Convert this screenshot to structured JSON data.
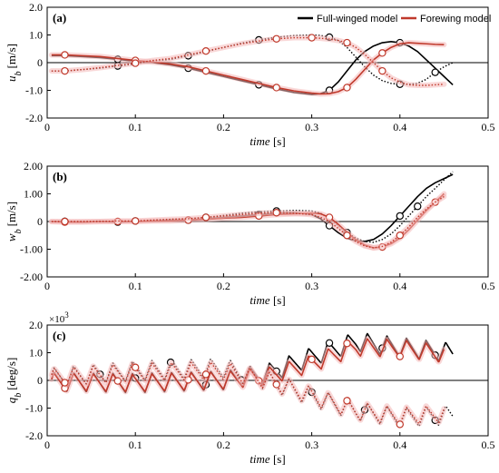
{
  "legend": {
    "position": "top-right",
    "entries": [
      {
        "label": "Full-winged model",
        "color": "#000000"
      },
      {
        "label": "Forewing model",
        "color": "#c0392b"
      }
    ]
  },
  "colors": {
    "full": "#000000",
    "fore": "#c0392b",
    "highlight": "#f4b8b8"
  },
  "chart_data": [
    {
      "type": "line",
      "panel_label": "(a)",
      "ylabel_var": "u",
      "ylabel_sub": "b",
      "ylabel_unit": "[m/s]",
      "xlabel_var": "time",
      "xlabel_unit": "[s]",
      "xlim": [
        0,
        0.5
      ],
      "ylim": [
        -2.0,
        2.0
      ],
      "xticks": [
        0,
        0.1,
        0.2,
        0.3,
        0.4,
        0.5
      ],
      "xtick_labels": [
        "0",
        "0.1",
        "0.2",
        "0.3",
        "0.4",
        "0.5"
      ],
      "yticks": [
        -2.0,
        -1.0,
        0,
        1.0,
        2.0
      ],
      "ytick_labels": [
        "-2.0",
        "-1.0",
        "0",
        "1.0",
        "2.0"
      ],
      "series": [
        {
          "name": "Full-winged model",
          "model": "full",
          "style": "solid",
          "x": [
            0.005,
            0.02,
            0.04,
            0.06,
            0.08,
            0.1,
            0.12,
            0.14,
            0.16,
            0.18,
            0.2,
            0.22,
            0.24,
            0.26,
            0.28,
            0.3,
            0.31,
            0.32,
            0.33,
            0.34,
            0.35,
            0.36,
            0.37,
            0.38,
            0.39,
            0.4,
            0.41,
            0.42,
            0.43,
            0.44,
            0.45,
            0.46
          ],
          "y": [
            0.25,
            0.25,
            0.22,
            0.18,
            0.12,
            0.05,
            0.0,
            -0.08,
            -0.2,
            -0.35,
            -0.5,
            -0.65,
            -0.8,
            -0.95,
            -1.08,
            -1.15,
            -1.12,
            -1.0,
            -0.7,
            -0.3,
            0.1,
            0.4,
            0.6,
            0.72,
            0.76,
            0.72,
            0.6,
            0.4,
            0.1,
            -0.2,
            -0.5,
            -0.8
          ],
          "markers": [
            0.08,
            0.16,
            0.24,
            0.32,
            0.4
          ]
        },
        {
          "name": "Full-winged model",
          "model": "full",
          "style": "dotted",
          "x": [
            0.005,
            0.02,
            0.04,
            0.06,
            0.08,
            0.1,
            0.12,
            0.14,
            0.16,
            0.18,
            0.2,
            0.22,
            0.24,
            0.26,
            0.28,
            0.3,
            0.31,
            0.32,
            0.33,
            0.34,
            0.35,
            0.36,
            0.37,
            0.38,
            0.39,
            0.4,
            0.41,
            0.42,
            0.43,
            0.44,
            0.45,
            0.46
          ],
          "y": [
            -0.3,
            -0.3,
            -0.25,
            -0.2,
            -0.12,
            -0.05,
            0.05,
            0.12,
            0.25,
            0.4,
            0.55,
            0.7,
            0.82,
            0.92,
            0.98,
            1.0,
            0.98,
            0.92,
            0.8,
            0.55,
            0.2,
            -0.15,
            -0.45,
            -0.65,
            -0.75,
            -0.78,
            -0.78,
            -0.75,
            -0.6,
            -0.35,
            -0.15,
            0.0
          ],
          "markers": [
            0.08,
            0.16,
            0.24,
            0.32,
            0.4,
            0.44
          ]
        },
        {
          "name": "Forewing model",
          "model": "fore",
          "style": "solid",
          "x": [
            0.005,
            0.02,
            0.04,
            0.06,
            0.08,
            0.1,
            0.12,
            0.14,
            0.16,
            0.18,
            0.2,
            0.22,
            0.24,
            0.26,
            0.28,
            0.3,
            0.31,
            0.32,
            0.33,
            0.34,
            0.35,
            0.36,
            0.37,
            0.38,
            0.39,
            0.4,
            0.41,
            0.42,
            0.43,
            0.44,
            0.45
          ],
          "y": [
            0.28,
            0.28,
            0.25,
            0.22,
            0.15,
            0.08,
            0.02,
            -0.05,
            -0.15,
            -0.3,
            -0.45,
            -0.6,
            -0.75,
            -0.9,
            -1.02,
            -1.1,
            -1.13,
            -1.12,
            -1.05,
            -0.9,
            -0.6,
            -0.25,
            0.1,
            0.35,
            0.55,
            0.68,
            0.72,
            0.7,
            0.68,
            0.66,
            0.65
          ],
          "markers": [
            0.02,
            0.1,
            0.18,
            0.26,
            0.34,
            0.38
          ]
        },
        {
          "name": "Forewing model",
          "model": "fore",
          "style": "dotted",
          "x": [
            0.005,
            0.02,
            0.04,
            0.06,
            0.08,
            0.1,
            0.12,
            0.14,
            0.16,
            0.18,
            0.2,
            0.22,
            0.24,
            0.26,
            0.28,
            0.3,
            0.31,
            0.32,
            0.33,
            0.34,
            0.35,
            0.36,
            0.37,
            0.38,
            0.39,
            0.4,
            0.41,
            0.42,
            0.43,
            0.44,
            0.45
          ],
          "y": [
            -0.3,
            -0.3,
            -0.25,
            -0.18,
            -0.1,
            -0.02,
            0.08,
            0.15,
            0.28,
            0.42,
            0.55,
            0.68,
            0.78,
            0.86,
            0.9,
            0.9,
            0.88,
            0.85,
            0.8,
            0.72,
            0.55,
            0.3,
            0.0,
            -0.3,
            -0.55,
            -0.7,
            -0.8,
            -0.82,
            -0.82,
            -0.8,
            -0.78
          ],
          "markers": [
            0.02,
            0.1,
            0.18,
            0.26,
            0.3,
            0.34,
            0.38
          ]
        }
      ]
    },
    {
      "type": "line",
      "panel_label": "(b)",
      "ylabel_var": "w",
      "ylabel_sub": "b",
      "ylabel_unit": "[m/s]",
      "xlabel_var": "time",
      "xlabel_unit": "[s]",
      "xlim": [
        0,
        0.5
      ],
      "ylim": [
        -2.0,
        2.0
      ],
      "xticks": [
        0,
        0.1,
        0.2,
        0.3,
        0.4,
        0.5
      ],
      "xtick_labels": [
        "0",
        "0.1",
        "0.2",
        "0.3",
        "0.4",
        "0.5"
      ],
      "yticks": [
        -2.0,
        -1.0,
        0,
        1.0,
        2.0
      ],
      "ytick_labels": [
        "-2.00",
        "-1.00",
        "0",
        "1.00",
        "2.00"
      ],
      "series": [
        {
          "name": "Full-winged model",
          "model": "full",
          "style": "solid",
          "x": [
            0.005,
            0.02,
            0.04,
            0.06,
            0.08,
            0.1,
            0.12,
            0.14,
            0.16,
            0.18,
            0.2,
            0.22,
            0.24,
            0.26,
            0.28,
            0.3,
            0.31,
            0.32,
            0.33,
            0.34,
            0.35,
            0.36,
            0.37,
            0.38,
            0.39,
            0.4,
            0.41,
            0.42,
            0.43,
            0.44,
            0.45,
            0.46
          ],
          "y": [
            0.0,
            0.0,
            -0.02,
            0.0,
            -0.02,
            0.0,
            0.02,
            0.05,
            0.05,
            0.1,
            0.15,
            0.2,
            0.25,
            0.3,
            0.32,
            0.25,
            0.1,
            -0.15,
            -0.4,
            -0.6,
            -0.7,
            -0.72,
            -0.65,
            -0.45,
            -0.15,
            0.2,
            0.55,
            0.9,
            1.2,
            1.4,
            1.55,
            1.7
          ],
          "markers": [
            0.02,
            0.08,
            0.16,
            0.24,
            0.32,
            0.4
          ]
        },
        {
          "name": "Full-winged model",
          "model": "full",
          "style": "dotted",
          "x": [
            0.005,
            0.02,
            0.04,
            0.06,
            0.08,
            0.1,
            0.12,
            0.14,
            0.16,
            0.18,
            0.2,
            0.22,
            0.24,
            0.26,
            0.28,
            0.3,
            0.31,
            0.32,
            0.33,
            0.34,
            0.35,
            0.36,
            0.37,
            0.38,
            0.39,
            0.4,
            0.41,
            0.42,
            0.43,
            0.44,
            0.45,
            0.46
          ],
          "y": [
            0.0,
            0.0,
            0.0,
            0.02,
            0.0,
            0.02,
            0.05,
            0.08,
            0.1,
            0.15,
            0.22,
            0.3,
            0.35,
            0.38,
            0.4,
            0.38,
            0.3,
            0.1,
            -0.15,
            -0.4,
            -0.6,
            -0.72,
            -0.75,
            -0.65,
            -0.45,
            -0.15,
            0.2,
            0.55,
            0.9,
            1.2,
            1.5,
            1.8
          ],
          "markers": [
            0.02,
            0.1,
            0.18,
            0.26,
            0.34,
            0.42
          ]
        },
        {
          "name": "Forewing model",
          "model": "fore",
          "style": "solid",
          "x": [
            0.005,
            0.02,
            0.04,
            0.06,
            0.08,
            0.1,
            0.12,
            0.14,
            0.16,
            0.18,
            0.2,
            0.22,
            0.24,
            0.26,
            0.28,
            0.3,
            0.31,
            0.32,
            0.33,
            0.34,
            0.35,
            0.36,
            0.37,
            0.38,
            0.39,
            0.4,
            0.41,
            0.42,
            0.43,
            0.44,
            0.45
          ],
          "y": [
            0.0,
            -0.02,
            -0.02,
            0.0,
            0.0,
            0.0,
            0.02,
            0.02,
            0.05,
            0.08,
            0.12,
            0.15,
            0.2,
            0.25,
            0.28,
            0.3,
            0.28,
            0.15,
            -0.1,
            -0.4,
            -0.65,
            -0.85,
            -0.95,
            -0.92,
            -0.8,
            -0.6,
            -0.3,
            0.05,
            0.4,
            0.7,
            1.0
          ],
          "markers": [
            0.02,
            0.08,
            0.16,
            0.24,
            0.32,
            0.38,
            0.44
          ]
        },
        {
          "name": "Forewing model",
          "model": "fore",
          "style": "dotted",
          "x": [
            0.005,
            0.02,
            0.04,
            0.06,
            0.08,
            0.1,
            0.12,
            0.14,
            0.16,
            0.18,
            0.2,
            0.22,
            0.24,
            0.26,
            0.28,
            0.3,
            0.31,
            0.32,
            0.33,
            0.34,
            0.35,
            0.36,
            0.37,
            0.38,
            0.39,
            0.4,
            0.41,
            0.42,
            0.43,
            0.44,
            0.45
          ],
          "y": [
            0.0,
            0.0,
            0.0,
            0.0,
            0.02,
            0.02,
            0.05,
            0.08,
            0.1,
            0.15,
            0.2,
            0.25,
            0.3,
            0.32,
            0.3,
            0.25,
            0.15,
            0.0,
            -0.25,
            -0.5,
            -0.72,
            -0.88,
            -0.95,
            -0.9,
            -0.75,
            -0.5,
            -0.2,
            0.15,
            0.45,
            0.7,
            0.9
          ],
          "markers": [
            0.02,
            0.1,
            0.18,
            0.26,
            0.34,
            0.4
          ]
        }
      ]
    },
    {
      "type": "line",
      "panel_label": "(c)",
      "ylabel_var": "q",
      "ylabel_sub": "b",
      "ylabel_unit": "[deg/s]",
      "xlabel_var": "time",
      "xlabel_unit": "[s]",
      "multiplier": "×10",
      "multiplier_exp": "3",
      "xlim": [
        0,
        0.5
      ],
      "ylim": [
        -2.0,
        2.0
      ],
      "xticks": [
        0,
        0.1,
        0.2,
        0.3,
        0.4,
        0.5
      ],
      "xtick_labels": [
        "0",
        "0.1",
        "0.2",
        "0.3",
        "0.4",
        "0.5"
      ],
      "yticks": [
        -2.0,
        -1.0,
        0,
        1.0,
        2.0
      ],
      "ytick_labels": [
        "-2.0",
        "-1.0",
        "0",
        "1.0",
        "2.0"
      ],
      "series": [
        {
          "name": "Full-winged model",
          "model": "full",
          "style": "solid",
          "base_x": [
            0.0,
            0.1,
            0.2,
            0.25,
            0.3,
            0.35,
            0.4,
            0.46
          ],
          "base_y": [
            -0.05,
            -0.1,
            0.0,
            0.25,
            0.85,
            1.4,
            1.2,
            1.0
          ],
          "osc_amp": 0.35,
          "osc_period": 0.0222,
          "x_end": 0.46,
          "markers": [
            0.1,
            0.18,
            0.26,
            0.32,
            0.38,
            0.44
          ]
        },
        {
          "name": "Full-winged model",
          "model": "full",
          "style": "dotted",
          "base_x": [
            0.0,
            0.1,
            0.2,
            0.25,
            0.3,
            0.35,
            0.4,
            0.46
          ],
          "base_y": [
            0.1,
            0.35,
            0.45,
            0.0,
            -0.6,
            -1.1,
            -1.35,
            -1.25
          ],
          "osc_amp": 0.35,
          "osc_period": 0.0222,
          "x_end": 0.46,
          "markers": [
            0.06,
            0.14,
            0.22,
            0.3,
            0.36,
            0.44
          ]
        },
        {
          "name": "Forewing model",
          "model": "fore",
          "style": "solid",
          "base_x": [
            0.0,
            0.1,
            0.2,
            0.25,
            0.3,
            0.35,
            0.4,
            0.45
          ],
          "base_y": [
            -0.05,
            -0.1,
            0.0,
            0.15,
            0.6,
            1.2,
            1.15,
            0.95
          ],
          "osc_amp": 0.32,
          "osc_period": 0.0222,
          "x_end": 0.45,
          "markers": [
            0.02,
            0.08,
            0.16,
            0.24,
            0.3,
            0.34,
            0.4
          ]
        },
        {
          "name": "Forewing model",
          "model": "fore",
          "style": "dotted",
          "base_x": [
            0.0,
            0.1,
            0.2,
            0.25,
            0.3,
            0.35,
            0.4,
            0.45
          ],
          "base_y": [
            0.1,
            0.3,
            0.35,
            0.0,
            -0.55,
            -1.1,
            -1.3,
            -1.2
          ],
          "osc_amp": 0.32,
          "osc_period": 0.0222,
          "x_end": 0.45,
          "markers": [
            0.02,
            0.1,
            0.18,
            0.26,
            0.34,
            0.4
          ]
        }
      ]
    }
  ]
}
